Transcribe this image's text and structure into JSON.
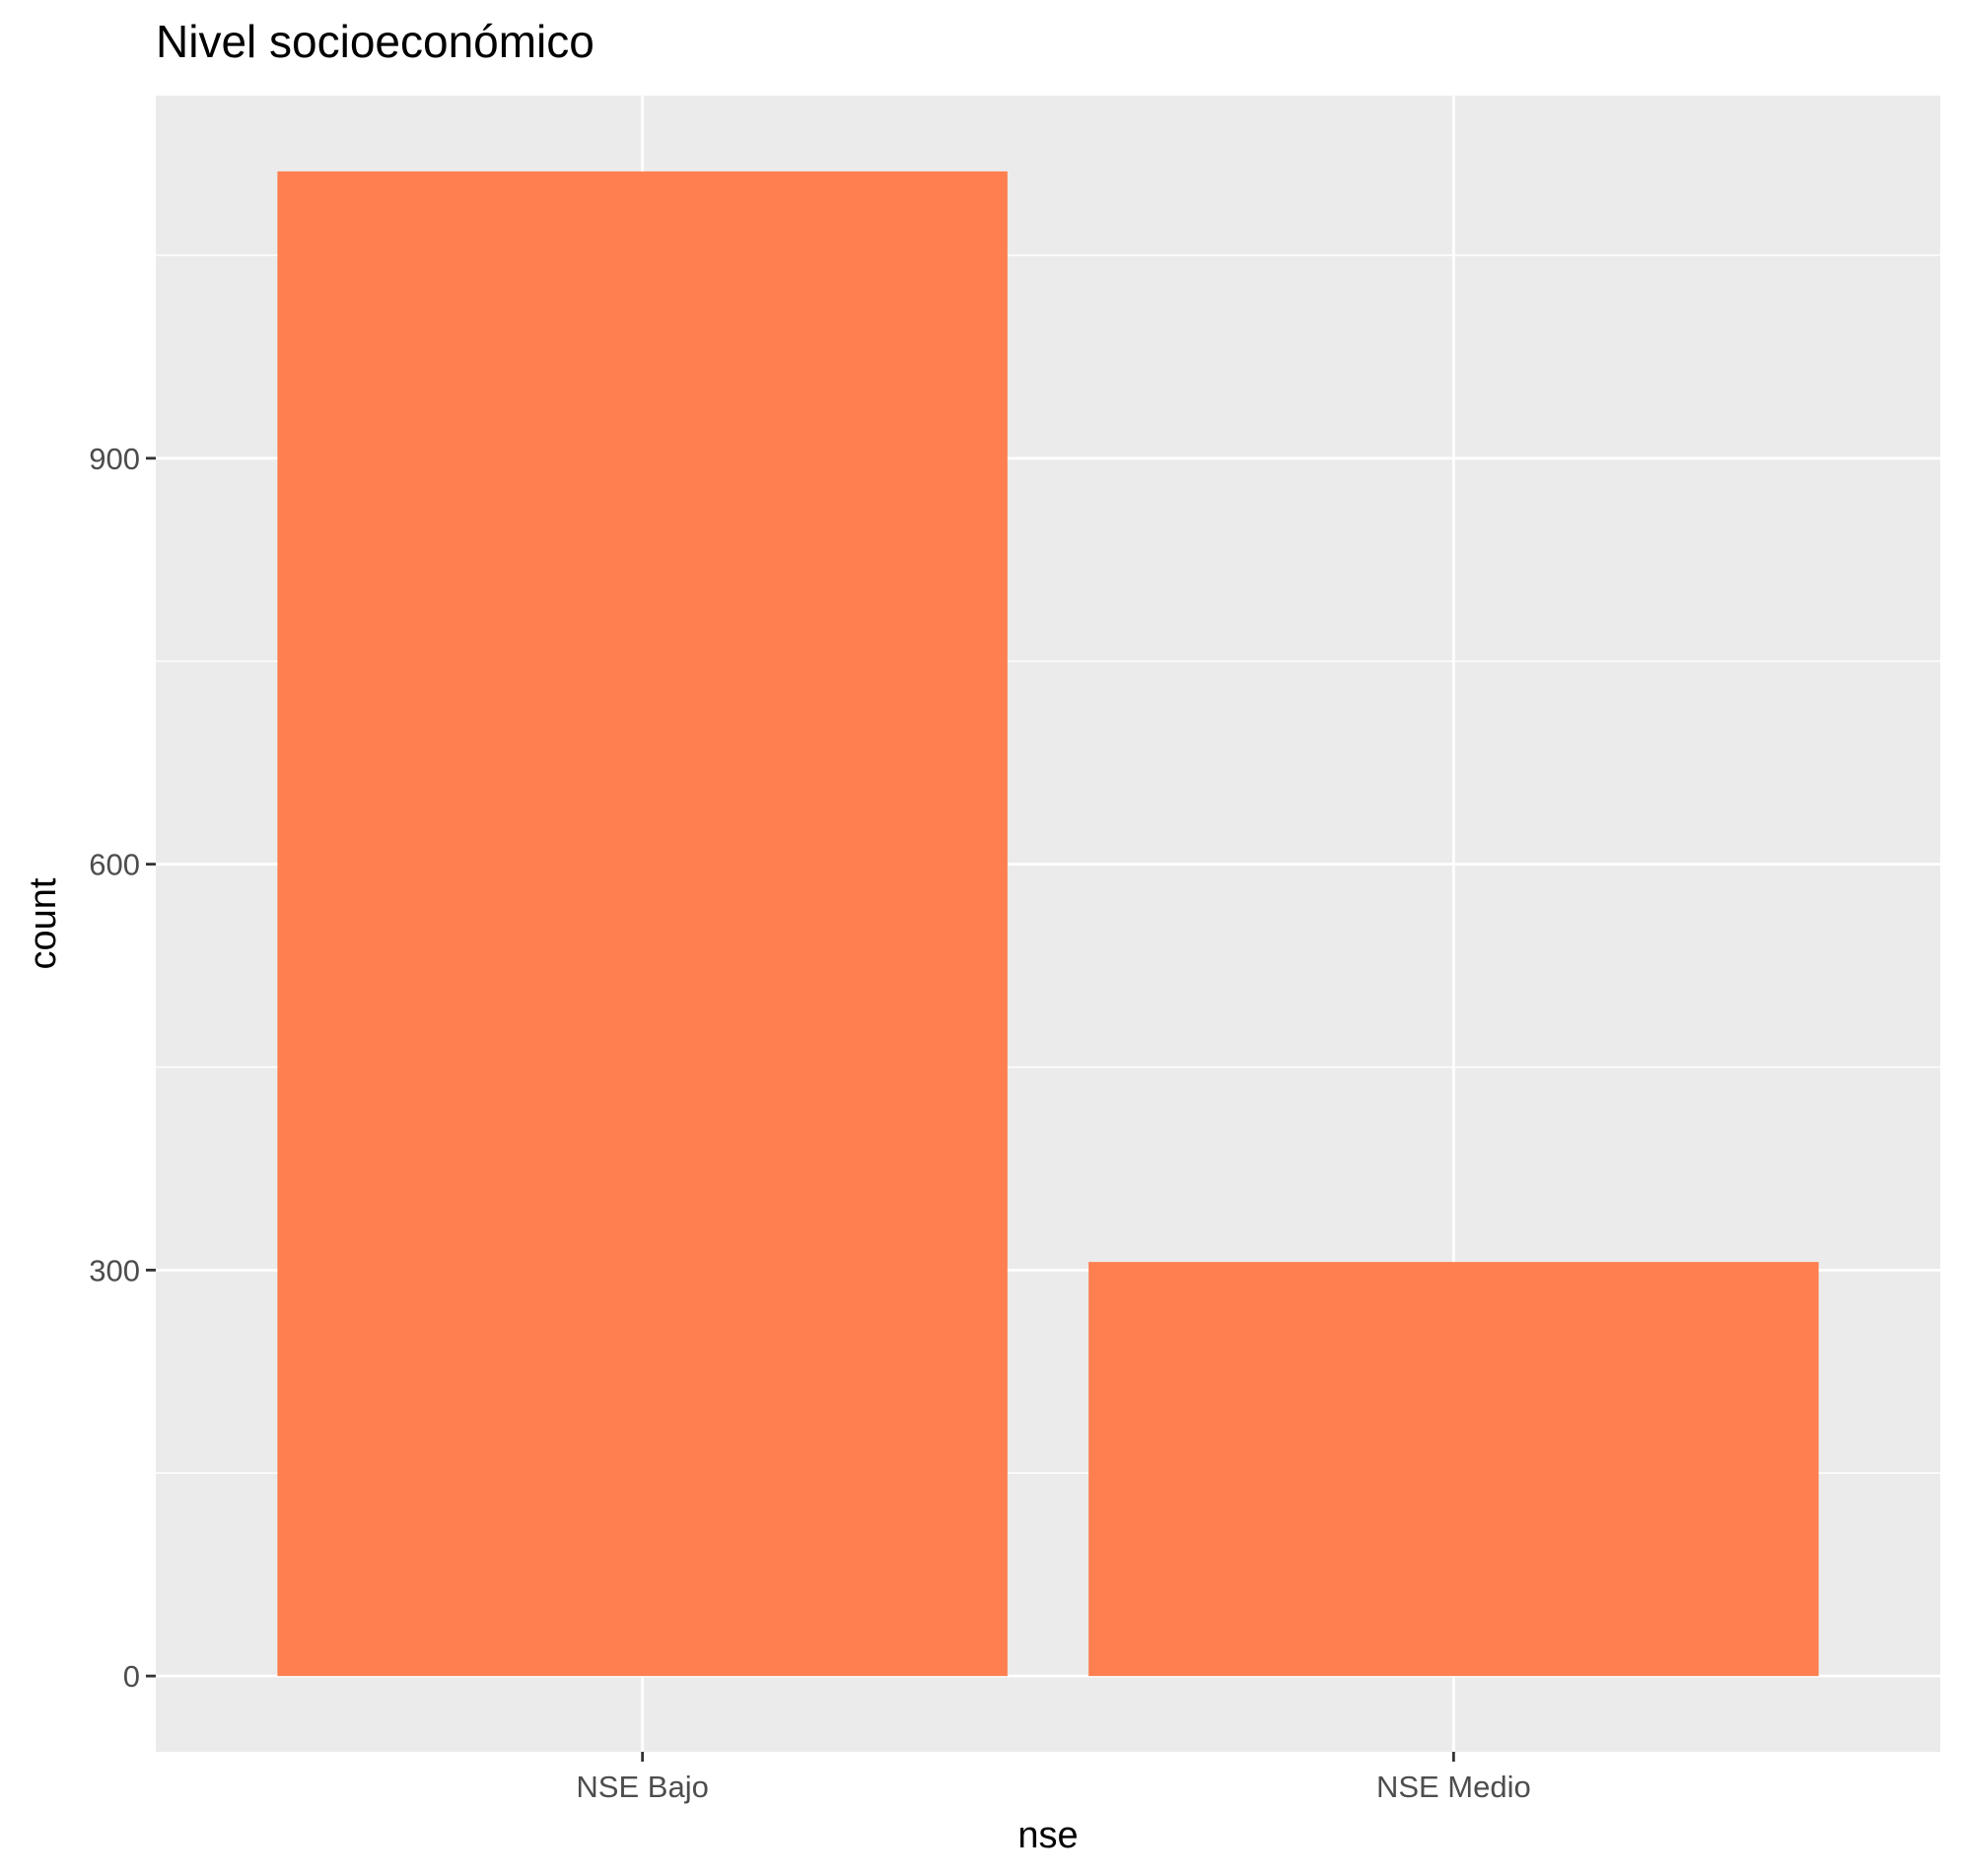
{
  "chart_data": {
    "type": "bar",
    "title": "Nivel socioeconómico",
    "xlabel": "nse",
    "ylabel": "count",
    "categories": [
      "NSE Bajo",
      "NSE Medio"
    ],
    "values": [
      1112,
      306
    ],
    "ylim": [
      -56,
      1168
    ],
    "yticks": [
      0,
      300,
      600,
      900
    ],
    "ytick_labels": [
      "0",
      "300",
      "600",
      "900"
    ],
    "grid": true,
    "bar_color": "#FF7F50",
    "panel_background": "#EBEBEB",
    "grid_color": "#FFFFFF"
  }
}
